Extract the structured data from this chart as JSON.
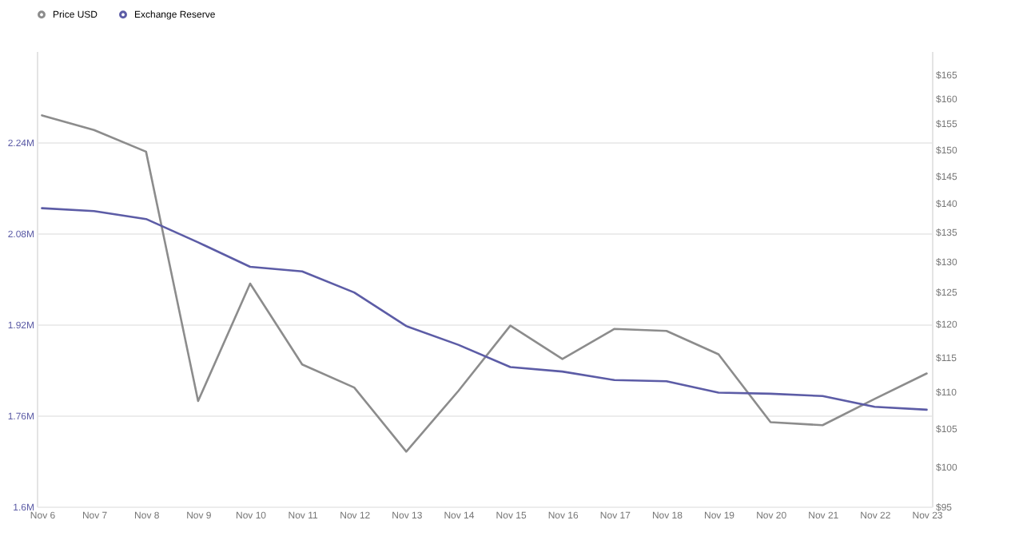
{
  "chart_data": {
    "type": "line",
    "categories": [
      "Nov 6",
      "Nov 7",
      "Nov 8",
      "Nov 9",
      "Nov 10",
      "Nov 11",
      "Nov 12",
      "Nov 13",
      "Nov 14",
      "Nov 15",
      "Nov 16",
      "Nov 17",
      "Nov 18",
      "Nov 19",
      "Nov 20",
      "Nov 21",
      "Nov 22",
      "Nov 23"
    ],
    "series": [
      {
        "name": "Price USD",
        "color": "#8c8c8c",
        "axis": "y2",
        "values": [
          156.6,
          153.7,
          149.5,
          108.7,
          126.3,
          113.9,
          110.6,
          101.9,
          110.1,
          119.7,
          114.7,
          119.2,
          118.9,
          115.4,
          105.8,
          105.4,
          109.0,
          112.6
        ]
      },
      {
        "name": "Exchange Reserve",
        "color": "#5c5ca6",
        "values": [
          2124000,
          2119000,
          2105000,
          2064000,
          2021000,
          2013000,
          1976000,
          1917000,
          1884000,
          1845000,
          1837000,
          1822000,
          1820000,
          1800000,
          1798000,
          1794000,
          1775000,
          1770000
        ]
      }
    ],
    "ylim": [
      1600000,
      2400000
    ],
    "yticks": [
      {
        "value": 1600000,
        "label": "1.6M"
      },
      {
        "value": 1760000,
        "label": "1.76M"
      },
      {
        "value": 1920000,
        "label": "1.92M"
      },
      {
        "value": 2080000,
        "label": "2.08M"
      },
      {
        "value": 2240000,
        "label": "2.24M"
      }
    ],
    "y2lim": [
      95,
      170
    ],
    "y2ticks": [
      {
        "value": 95,
        "label": "$95"
      },
      {
        "value": 100,
        "label": "$100"
      },
      {
        "value": 105,
        "label": "$105"
      },
      {
        "value": 110,
        "label": "$110"
      },
      {
        "value": 115,
        "label": "$115"
      },
      {
        "value": 120,
        "label": "$120"
      },
      {
        "value": 125,
        "label": "$125"
      },
      {
        "value": 130,
        "label": "$130"
      },
      {
        "value": 135,
        "label": "$135"
      },
      {
        "value": 140,
        "label": "$140"
      },
      {
        "value": 145,
        "label": "$145"
      },
      {
        "value": 150,
        "label": "$150"
      },
      {
        "value": 155,
        "label": "$155"
      },
      {
        "value": 160,
        "label": "$160"
      },
      {
        "value": 165,
        "label": "$165"
      }
    ],
    "log": "y2",
    "grid": "y",
    "legend": "top",
    "marker": "none",
    "line_style": "solid"
  }
}
